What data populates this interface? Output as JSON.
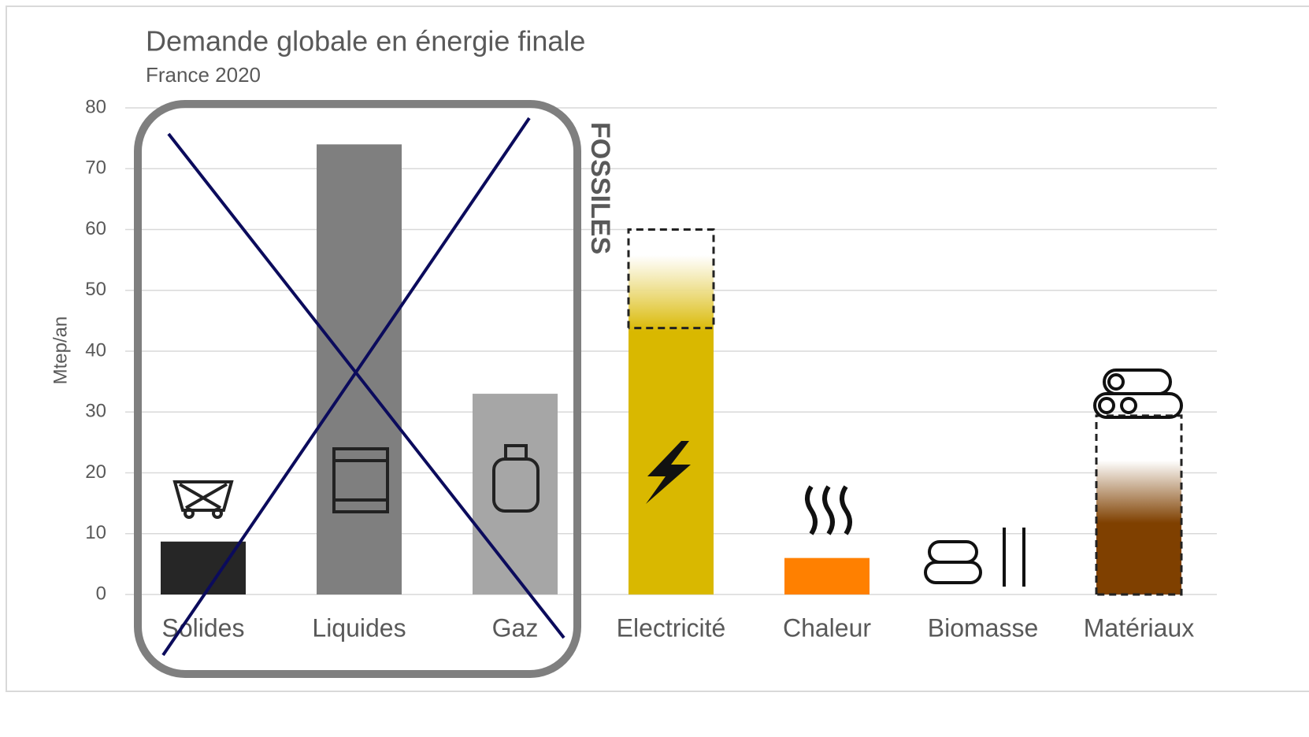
{
  "chart_data": {
    "type": "bar",
    "title": "Demande globale en énergie finale",
    "subtitle": "France 2020",
    "y_label": "Mtep/an",
    "annotation": "FOSSILES",
    "categories": [
      "Solides",
      "Liquides",
      "Gaz",
      "Electricité",
      "Chaleur",
      "Biomasse",
      "Matériaux"
    ],
    "values": [
      8.7,
      74,
      33,
      60,
      6,
      null,
      29.4
    ],
    "colors": [
      "#262626",
      "#7f7f7f",
      "#a6a6a6",
      "#d9b800",
      "#ff8000",
      "#7f4000",
      "#7f4000"
    ],
    "ylim": [
      0,
      80
    ],
    "yticks": [
      0,
      10,
      20,
      30,
      40,
      50,
      60,
      70,
      80
    ],
    "grid": true
  }
}
